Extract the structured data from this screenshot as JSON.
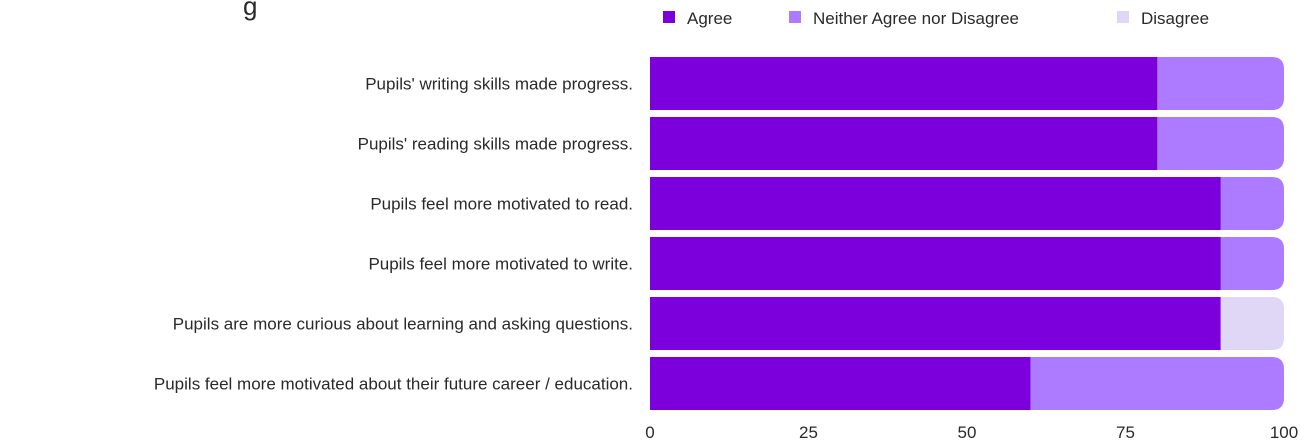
{
  "chart_data": {
    "type": "bar",
    "orientation": "horizontal",
    "stacked": true,
    "title_fragment": "g",
    "categories": [
      "Pupils' writing skills made progress.",
      "Pupils' reading skills made progress.",
      "Pupils feel more motivated to read.",
      "Pupils feel more motivated to write.",
      "Pupils are more curious about learning and asking questions.",
      "Pupils feel more motivated about their future career / education."
    ],
    "series": [
      {
        "name": "Agree",
        "color": "#7b00db",
        "values": [
          80,
          80,
          90,
          90,
          90,
          60
        ]
      },
      {
        "name": "Neither Agree nor Disagree",
        "color": "#ac7bff",
        "values": [
          20,
          20,
          10,
          10,
          0,
          40
        ]
      },
      {
        "name": "Disagree",
        "color": "#e0d6f6",
        "values": [
          0,
          0,
          0,
          0,
          10,
          0
        ]
      }
    ],
    "xlim": [
      0,
      100
    ],
    "xticks": [
      "0",
      "25",
      "50",
      "75",
      "100"
    ],
    "xtick_values": [
      0,
      25,
      50,
      75,
      100
    ],
    "grid": false,
    "legend_position": "top-right"
  }
}
